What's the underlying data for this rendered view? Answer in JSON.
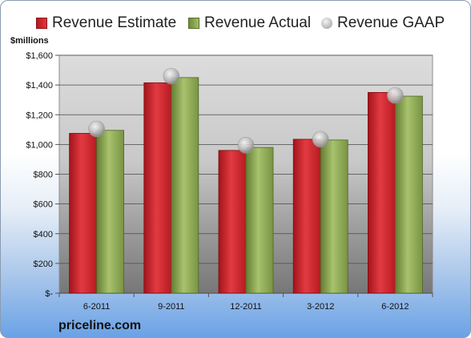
{
  "chart_data": {
    "type": "bar",
    "categories": [
      "6-2011",
      "9-2011",
      "12-2011",
      "3-2012",
      "6-2012"
    ],
    "series": [
      {
        "name": "Revenue Estimate",
        "kind": "bar",
        "color": "#c8222a",
        "values": [
          1075,
          1415,
          960,
          1035,
          1350
        ]
      },
      {
        "name": "Revenue Actual",
        "kind": "bar",
        "color": "#8aa54f",
        "values": [
          1095,
          1450,
          980,
          1030,
          1325
        ]
      },
      {
        "name": "Revenue GAAP",
        "kind": "marker",
        "color": "#b8b8b8",
        "values": [
          1105,
          1460,
          995,
          1035,
          1330
        ]
      }
    ],
    "ylabel": "$millions",
    "ylim": [
      0,
      1600
    ],
    "yticks": [
      0,
      200,
      400,
      600,
      800,
      1000,
      1200,
      1400,
      1600
    ],
    "ytick_labels": [
      "$-",
      "$200",
      "$400",
      "$600",
      "$800",
      "$1,000",
      "$1,200",
      "$1,400",
      "$1,600"
    ],
    "grid": true,
    "legend_position": "top"
  },
  "branding": {
    "logo_text": "priceline.com"
  }
}
